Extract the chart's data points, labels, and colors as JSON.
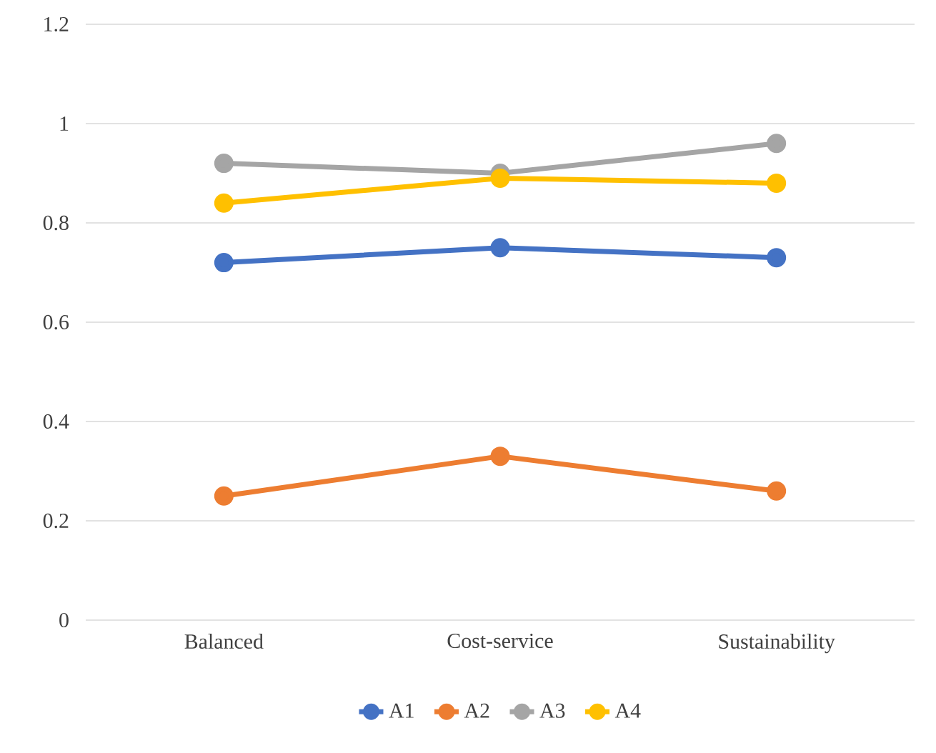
{
  "chart_data": {
    "type": "line",
    "categories": [
      "Balanced",
      "Cost-service",
      "Sustainability"
    ],
    "series": [
      {
        "name": "A1",
        "color": "#4472c4",
        "values": [
          0.72,
          0.75,
          0.73
        ]
      },
      {
        "name": "A2",
        "color": "#ed7d31",
        "values": [
          0.25,
          0.33,
          0.26
        ]
      },
      {
        "name": "A3",
        "color": "#a5a5a5",
        "values": [
          0.92,
          0.9,
          0.96
        ]
      },
      {
        "name": "A4",
        "color": "#ffc000",
        "values": [
          0.84,
          0.89,
          0.88
        ]
      }
    ],
    "ylim": [
      0,
      1.2
    ],
    "yticks": [
      0,
      0.2,
      0.4,
      0.6,
      0.8,
      1,
      1.2
    ],
    "grid": "y",
    "legend": "bottom",
    "marker": "circle",
    "line_style": "solid"
  }
}
